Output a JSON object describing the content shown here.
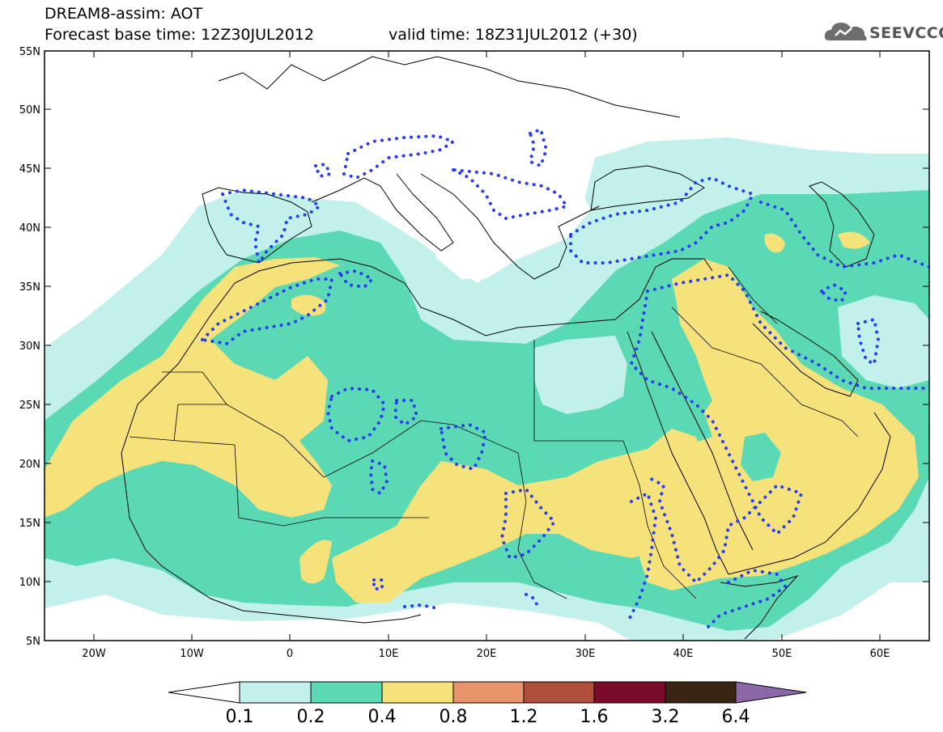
{
  "header": {
    "title": "DREAM8-assim: AOT",
    "base_time": "Forecast base time: 12Z30JUL2012",
    "valid_time": "valid time: 18Z31JUL2012 (+30)"
  },
  "logo": {
    "text": "SEEVCCC",
    "icon": "cloud-icon"
  },
  "map": {
    "lon_range": [
      -25,
      65
    ],
    "lat_range": [
      5,
      55
    ],
    "lat_ticks": [
      "5N",
      "10N",
      "15N",
      "20N",
      "25N",
      "30N",
      "35N",
      "40N",
      "45N",
      "50N",
      "55N"
    ],
    "lon_ticks": [
      "20W",
      "10W",
      "0",
      "10E",
      "20E",
      "30E",
      "40E",
      "50E",
      "60E"
    ],
    "obs_contour_color": "#2a3cf0"
  },
  "colorbar": {
    "levels": [
      "0.1",
      "0.2",
      "0.4",
      "0.8",
      "1.2",
      "1.6",
      "3.2",
      "6.4"
    ],
    "colors": [
      "#ffffff",
      "#c2f0ea",
      "#5ad9b4",
      "#f5e27a",
      "#e8936a",
      "#b04e3c",
      "#7a0a2a",
      "#3a2413",
      "#8d68a8"
    ]
  }
}
